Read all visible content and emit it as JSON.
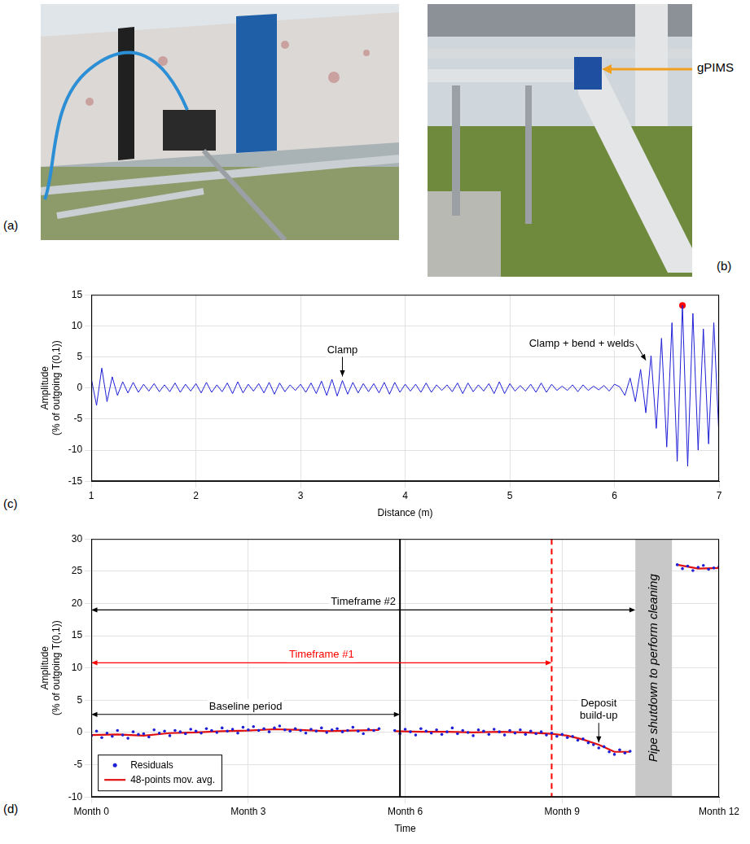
{
  "panels": [
    {
      "letter": "(a)"
    },
    {
      "letter": "(b)",
      "label": "gPIMS"
    }
  ],
  "chart_data": [
    {
      "panel": "(c)",
      "type": "line",
      "xlabel": "Distance (m)",
      "ylabel": "Amplitude\n(% of outgoing T(0,1))",
      "xlim": [
        1,
        7
      ],
      "xticks": [
        1,
        2,
        3,
        4,
        5,
        6,
        7
      ],
      "ylim": [
        -15,
        15
      ],
      "yticks": [
        -15,
        -10,
        -5,
        0,
        5,
        10,
        15
      ],
      "grid": true,
      "x": [
        1,
        1.05,
        1.1,
        1.15,
        1.2,
        1.25,
        1.3,
        1.35,
        1.4,
        1.45,
        1.5,
        1.55,
        1.6,
        1.65,
        1.7,
        1.75,
        1.8,
        1.85,
        1.9,
        1.95,
        2,
        2.05,
        2.1,
        2.15,
        2.2,
        2.25,
        2.3,
        2.35,
        2.4,
        2.45,
        2.5,
        2.55,
        2.6,
        2.65,
        2.7,
        2.75,
        2.8,
        2.85,
        2.9,
        2.95,
        3,
        3.05,
        3.1,
        3.15,
        3.2,
        3.25,
        3.3,
        3.35,
        3.4,
        3.45,
        3.5,
        3.55,
        3.6,
        3.65,
        3.7,
        3.75,
        3.8,
        3.85,
        3.9,
        3.95,
        4,
        4.05,
        4.1,
        4.15,
        4.2,
        4.25,
        4.3,
        4.35,
        4.4,
        4.45,
        4.5,
        4.55,
        4.6,
        4.65,
        4.7,
        4.75,
        4.8,
        4.85,
        4.9,
        4.95,
        5,
        5.05,
        5.1,
        5.15,
        5.2,
        5.25,
        5.3,
        5.35,
        5.4,
        5.45,
        5.5,
        5.55,
        5.6,
        5.65,
        5.7,
        5.75,
        5.8,
        5.85,
        5.9,
        5.95,
        6,
        6.05,
        6.1,
        6.15,
        6.2,
        6.25,
        6.3,
        6.35,
        6.4,
        6.45,
        6.5,
        6.55,
        6.6,
        6.65,
        6.7,
        6.75,
        6.8,
        6.85,
        6.9,
        6.95,
        7
      ],
      "series": [
        {
          "color": "#1f1fd6",
          "values": [
            1.5,
            -2.8,
            3.2,
            -2.2,
            1.8,
            -1.2,
            1.0,
            -0.8,
            0.9,
            -0.7,
            0.6,
            -0.5,
            0.7,
            -0.6,
            0.5,
            -0.6,
            0.8,
            -0.7,
            0.6,
            -0.5,
            0.7,
            -0.8,
            0.9,
            -0.7,
            0.5,
            -0.6,
            0.8,
            -0.9,
            1.0,
            -0.8,
            0.6,
            -0.5,
            0.7,
            -0.8,
            0.9,
            -1.0,
            0.8,
            -0.6,
            0.5,
            -0.4,
            0.6,
            -0.7,
            0.8,
            -0.9,
            1.1,
            -1.2,
            1.4,
            -1.3,
            1.2,
            -1.0,
            0.9,
            -0.8,
            0.7,
            -0.6,
            0.7,
            -0.8,
            0.9,
            -1.0,
            0.9,
            -0.7,
            0.6,
            -0.5,
            0.6,
            -0.7,
            0.8,
            -0.7,
            0.5,
            -0.4,
            0.5,
            -0.6,
            0.8,
            -0.9,
            0.8,
            -0.6,
            0.5,
            -0.5,
            0.7,
            -0.9,
            1.0,
            -0.9,
            0.7,
            -0.5,
            0.4,
            -0.5,
            0.6,
            -0.7,
            0.8,
            -0.7,
            0.6,
            -0.4,
            0.3,
            -0.4,
            0.5,
            -0.6,
            0.5,
            -0.4,
            0.3,
            -0.3,
            0.4,
            -0.5,
            0.6,
            0.2,
            -1.2,
            1.6,
            -2.2,
            3.0,
            -4.0,
            5.2,
            -6.5,
            8.0,
            -9.5,
            10.5,
            -11.8,
            13.3,
            -12.6,
            12.0,
            -10.0,
            9.5,
            -9.0,
            10.5,
            -8.0
          ]
        },
        {
          "type": "scatter",
          "color": "#ff0000",
          "marker": "circle",
          "x": [
            6.65
          ],
          "values": [
            13.3
          ]
        }
      ],
      "annotations": [
        {
          "text": "Clamp",
          "x": 3.4,
          "y": 1.6
        },
        {
          "text": "Clamp + bend + welds",
          "x": 6.3,
          "y": 4.2
        }
      ]
    },
    {
      "panel": "(d)",
      "type": "scatter",
      "xlabel": "Time",
      "ylabel": "Amplitude\n(% of outgoing T(0,1))",
      "xlim": [
        0,
        12
      ],
      "xticks": [
        {
          "value": 0,
          "label": "Month 0"
        },
        {
          "value": 3,
          "label": "Month 3"
        },
        {
          "value": 6,
          "label": "Month 6"
        },
        {
          "value": 9,
          "label": "Month 9"
        },
        {
          "value": 12,
          "label": "Month 12"
        }
      ],
      "ylim": [
        -10,
        30
      ],
      "yticks": [
        -10,
        -5,
        0,
        5,
        10,
        15,
        20,
        25,
        30
      ],
      "grid": true,
      "legend": "lower left",
      "series": [
        {
          "name": "Residuals",
          "type": "scatter",
          "marker": "circle",
          "color": "#1f1fd6",
          "x": [
            0,
            0.1,
            0.2,
            0.3,
            0.4,
            0.5,
            0.6,
            0.7,
            0.8,
            0.9,
            1,
            1.1,
            1.2,
            1.3,
            1.4,
            1.5,
            1.6,
            1.7,
            1.8,
            1.9,
            2,
            2.1,
            2.2,
            2.3,
            2.4,
            2.5,
            2.6,
            2.7,
            2.8,
            2.9,
            3,
            3.1,
            3.2,
            3.3,
            3.4,
            3.5,
            3.6,
            3.7,
            3.8,
            3.9,
            4,
            4.1,
            4.2,
            4.3,
            4.4,
            4.5,
            4.6,
            4.7,
            4.8,
            4.9,
            5,
            5.1,
            5.2,
            5.3,
            5.4,
            5.5,
            5.8,
            5.9,
            6,
            6.1,
            6.2,
            6.3,
            6.4,
            6.5,
            6.6,
            6.7,
            6.8,
            6.9,
            7,
            7.1,
            7.2,
            7.3,
            7.4,
            7.5,
            7.6,
            7.7,
            7.8,
            7.9,
            8,
            8.1,
            8.2,
            8.3,
            8.4,
            8.5,
            8.6,
            8.7,
            8.8,
            8.9,
            9,
            9.1,
            9.2,
            9.3,
            9.4,
            9.5,
            9.6,
            9.7,
            9.8,
            9.9,
            10,
            10.1,
            10.2,
            10.3,
            11.2,
            11.3,
            11.4,
            11.5,
            11.6,
            11.7,
            11.8,
            11.9,
            12
          ],
          "values": [
            -0.5,
            0.2,
            -0.8,
            -0.1,
            -0.6,
            0.3,
            -0.4,
            -0.9,
            0.1,
            -0.3,
            -0.2,
            -0.7,
            0.4,
            -0.1,
            0.2,
            -0.5,
            0.3,
            0.1,
            -0.2,
            0.5,
            0.2,
            -0.1,
            0.6,
            0.3,
            0.0,
            0.7,
            0.2,
            0.5,
            -0.1,
            0.8,
            0.4,
            0.9,
            0.3,
            0.6,
            0.1,
            0.7,
            1.0,
            0.4,
            0.2,
            0.6,
            0.3,
            -0.1,
            0.5,
            0.2,
            0.7,
            0.0,
            0.4,
            0.6,
            0.1,
            0.3,
            0.8,
            0.2,
            -0.2,
            0.5,
            0.3,
            0.6,
            0.3,
            -0.2,
            0.5,
            0.1,
            -0.4,
            0.6,
            0.2,
            -0.1,
            0.4,
            -0.3,
            0.1,
            0.7,
            -0.2,
            0.3,
            0.0,
            -0.5,
            0.4,
            0.2,
            -0.3,
            0.5,
            0.1,
            -0.4,
            0.3,
            -0.1,
            0.4,
            -0.3,
            0.2,
            -0.2,
            0.1,
            -0.4,
            -0.1,
            -0.6,
            -0.3,
            -0.8,
            -0.6,
            -1.2,
            -1.0,
            -1.6,
            -1.9,
            -2.4,
            -2.2,
            -3.0,
            -3.4,
            -2.7,
            -3.2,
            -2.9,
            26.0,
            25.4,
            25.8,
            25.1,
            25.6,
            25.9,
            25.3,
            25.5,
            25.7
          ]
        },
        {
          "name": "48-points mov. avg.",
          "type": "line",
          "color": "#e01010",
          "x": [
            0,
            0.5,
            1,
            1.5,
            2,
            2.5,
            3,
            3.5,
            4,
            4.5,
            5,
            5.5,
            5.65,
            5.8,
            6.3,
            6.8,
            7.3,
            7.8,
            8.3,
            8.8,
            9.1,
            9.4,
            9.7,
            10,
            10.3,
            10.75,
            11.2,
            11.6,
            12
          ],
          "values": [
            -0.4,
            -0.3,
            -0.5,
            -0.1,
            0.0,
            0.2,
            0.3,
            0.5,
            0.4,
            0.2,
            0.3,
            0.4,
            null,
            0.2,
            0.1,
            0.1,
            0.0,
            0.1,
            0.0,
            -0.2,
            -0.5,
            -1.1,
            -1.9,
            -3.0,
            -3.0,
            null,
            26.0,
            25.4,
            25.5
          ]
        }
      ],
      "vlines": [
        {
          "x": 5.9,
          "color": "#000000",
          "line_style": "solid"
        },
        {
          "x": 8.8,
          "color": "#ff0000",
          "line_style": "dashed"
        }
      ],
      "shaded": [
        {
          "from": 10.4,
          "to": 11.1,
          "color": "#c8c8c8",
          "text": "Pipe shutdown to perform cleaning"
        }
      ],
      "spans": [
        {
          "text": "Timeframe #2",
          "from": 0,
          "to": 10.4,
          "y": 19,
          "color": "#000000"
        },
        {
          "text": "Timeframe #1",
          "from": 0,
          "to": 8.8,
          "y": 10.8,
          "color": "#ff0000"
        },
        {
          "text": "Baseline period",
          "from": 0,
          "to": 5.9,
          "y": 2.8,
          "color": "#000000"
        }
      ],
      "annotations": [
        {
          "text": "Deposit\nbuild-up",
          "x": 9.7,
          "y": -1.8
        }
      ]
    }
  ]
}
